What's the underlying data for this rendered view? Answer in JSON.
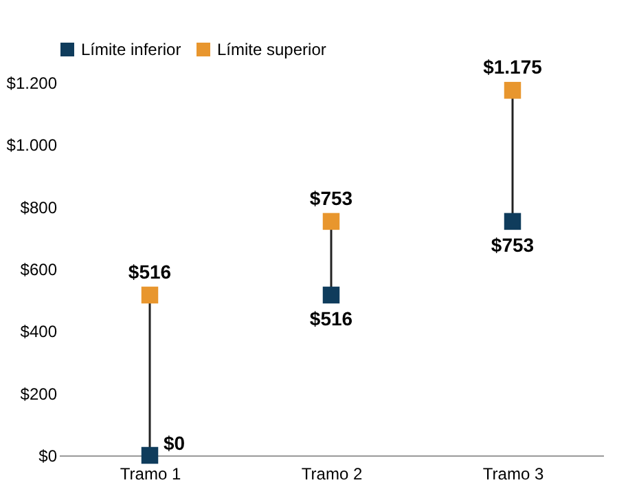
{
  "chart_data": {
    "type": "scatter",
    "marker": "square",
    "legend": "top",
    "grid": false,
    "categories": [
      "Tramo 1",
      "Tramo 2",
      "Tramo 3"
    ],
    "ylim": [
      0,
      1200
    ],
    "yticks": [
      {
        "value": 0,
        "label": "$0"
      },
      {
        "value": 200,
        "label": "$200"
      },
      {
        "value": 400,
        "label": "$400"
      },
      {
        "value": 600,
        "label": "$600"
      },
      {
        "value": 800,
        "label": "$800"
      },
      {
        "value": 1000,
        "label": "$1.000"
      },
      {
        "value": 1200,
        "label": "$1.200"
      }
    ],
    "series": [
      {
        "name": "Límite inferior",
        "color": "#0f3c5c",
        "values": [
          0,
          516,
          753
        ],
        "value_labels": [
          "$0",
          "$516",
          "$753"
        ]
      },
      {
        "name": "Límite superior",
        "color": "#e8962e",
        "values": [
          516,
          753,
          1175
        ],
        "value_labels": [
          "$516",
          "$753",
          "$1.175"
        ]
      }
    ]
  }
}
